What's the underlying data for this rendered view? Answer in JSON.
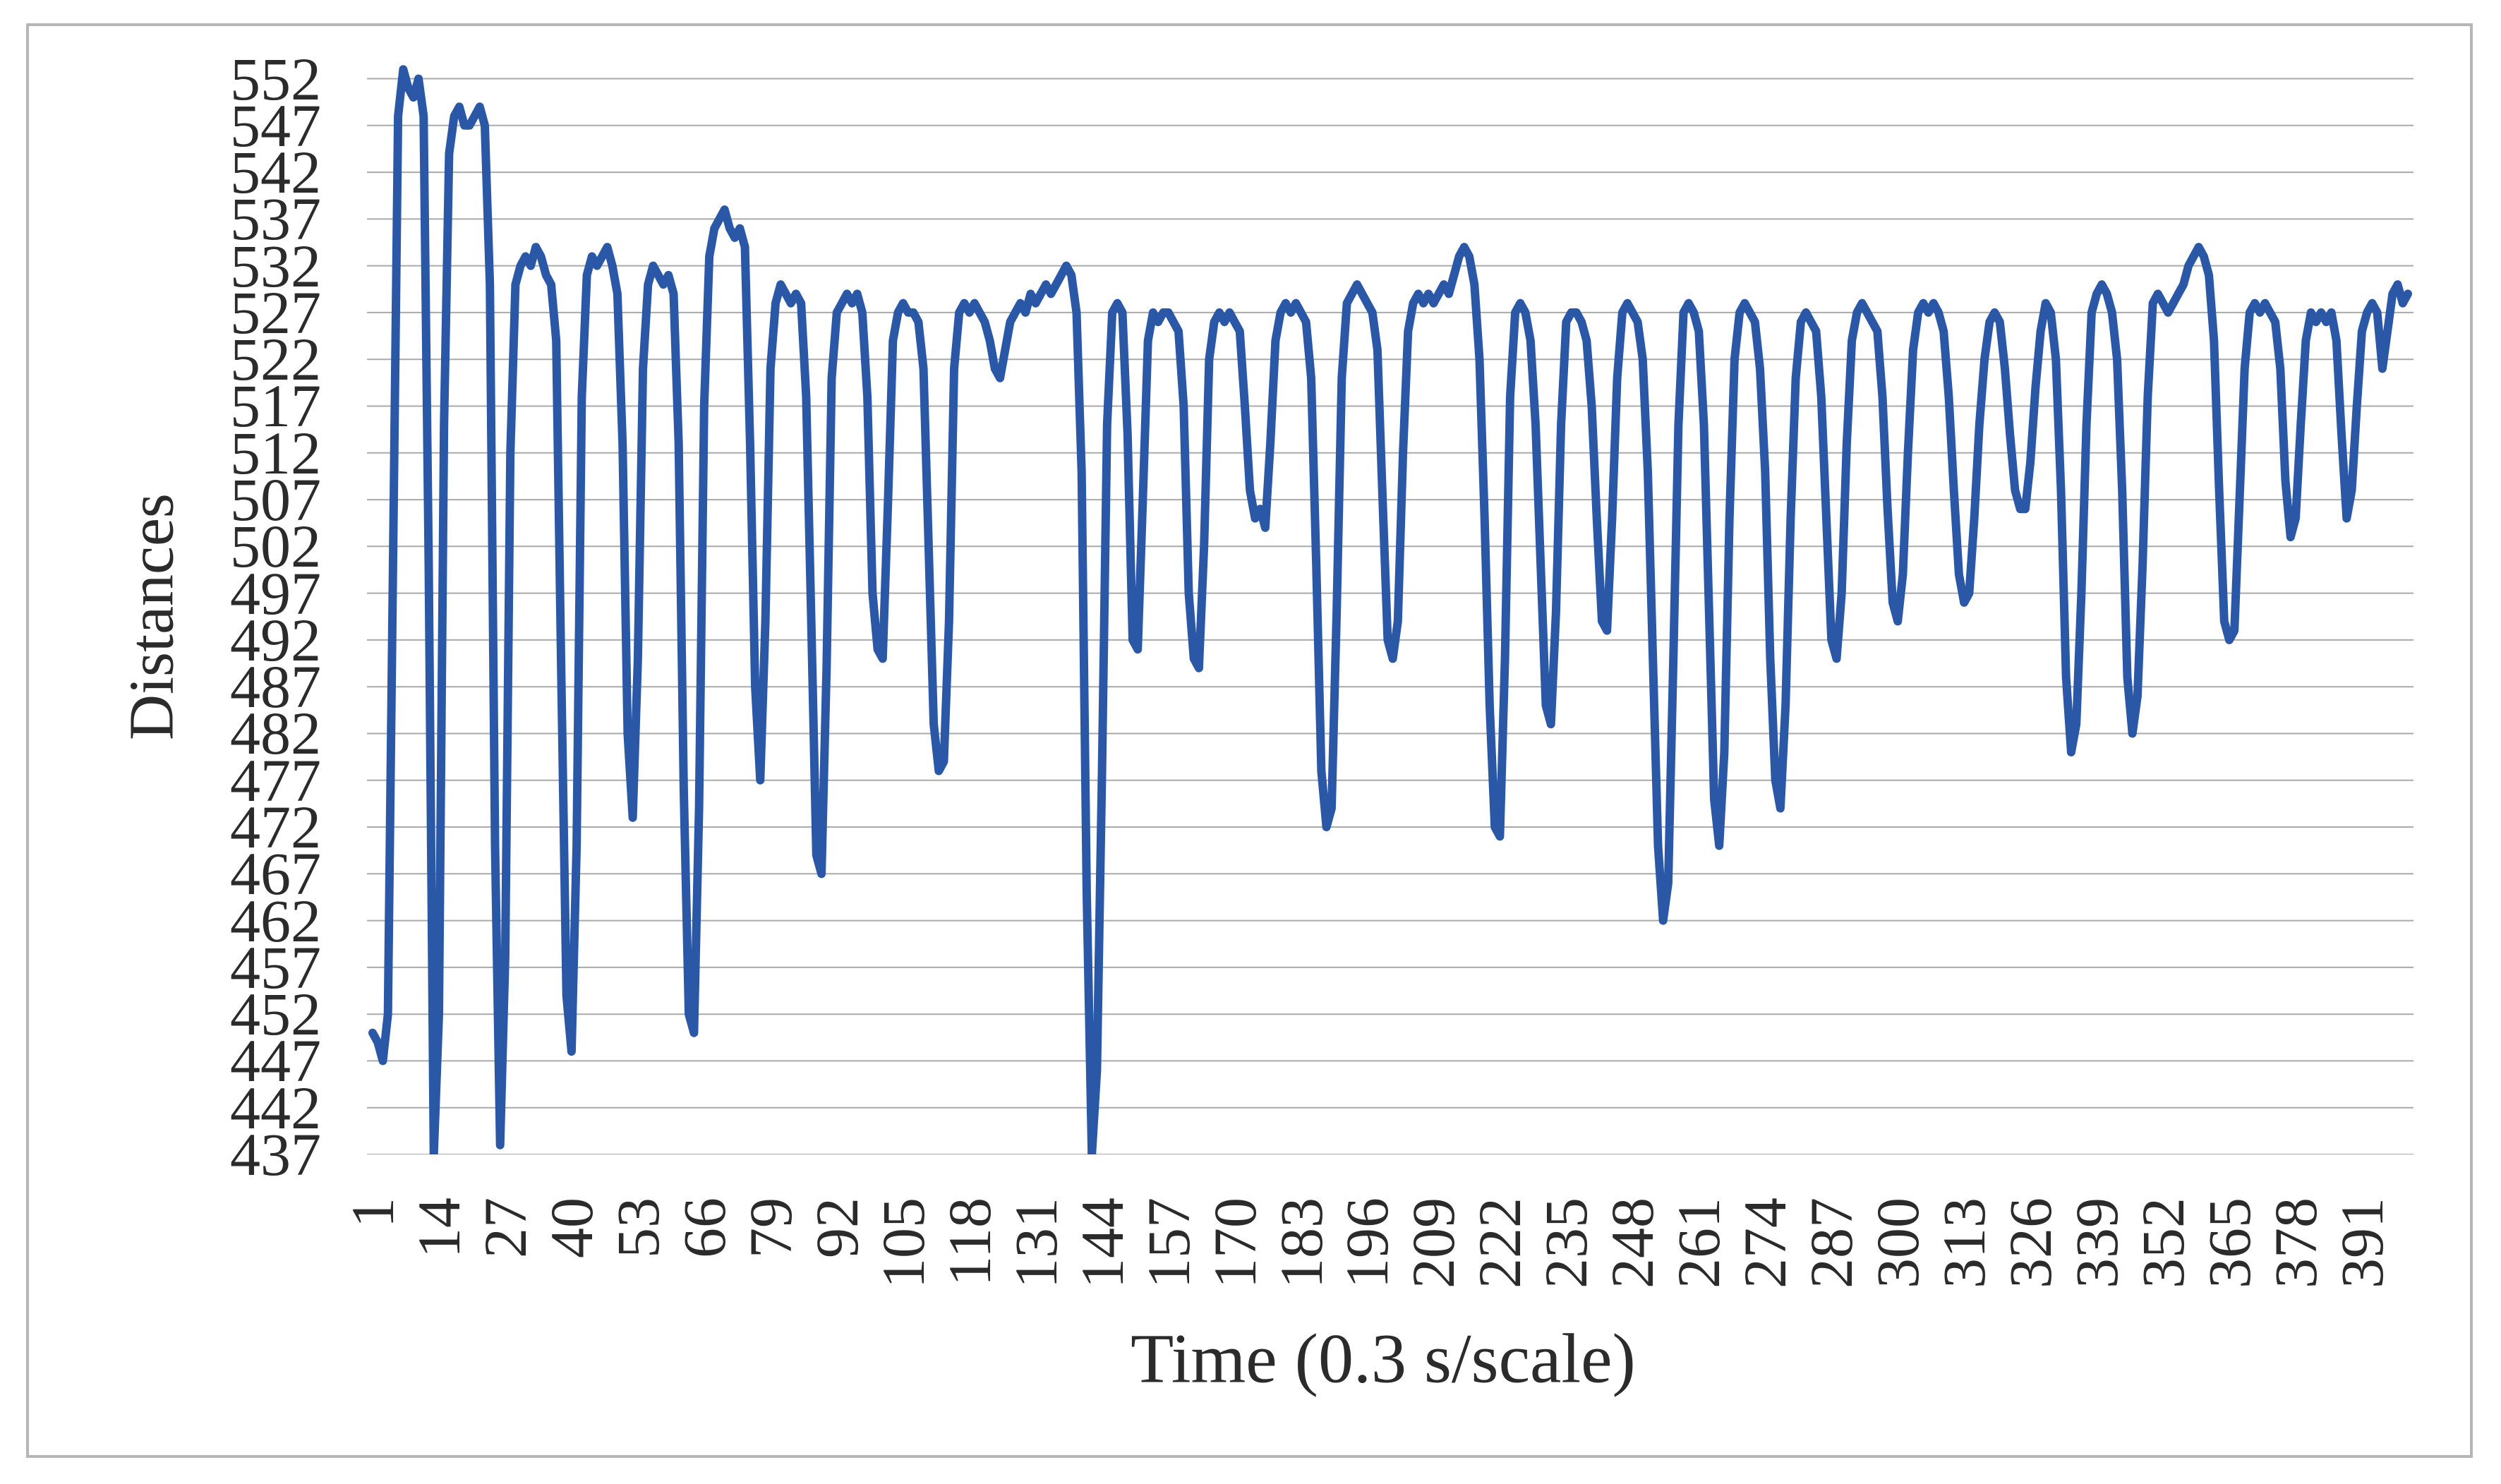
{
  "chart_data": {
    "type": "line",
    "title": "",
    "xlabel": "Time (0.3 s/scale)",
    "ylabel": "Distances",
    "legend": "none",
    "grid": "horizontal",
    "ylim": [
      437,
      554
    ],
    "y_ticks": [
      552,
      547,
      542,
      537,
      532,
      527,
      522,
      517,
      512,
      507,
      502,
      497,
      492,
      487,
      482,
      477,
      472,
      467,
      462,
      457,
      452,
      447,
      442,
      437
    ],
    "x_tick_labels": [
      "1",
      "14",
      "27",
      "40",
      "53",
      "66",
      "79",
      "92",
      "105",
      "118",
      "131",
      "144",
      "157",
      "170",
      "183",
      "196",
      "209",
      "222",
      "235",
      "248",
      "261",
      "274",
      "287",
      "300",
      "313",
      "326",
      "339",
      "352",
      "365",
      "378",
      "391"
    ],
    "x_tick_start": 1,
    "x_tick_step": 13,
    "x_count": 400,
    "colors": {
      "line": "#2b58a6",
      "gridline": "#aaaaaa",
      "frame_border": "#b6b6b6",
      "text": "#2b2b2b"
    },
    "series": [
      {
        "name": "Distances",
        "x_start": 1,
        "x_step": 1,
        "values": [
          450,
          449,
          447,
          452,
          500,
          548,
          553,
          551,
          550,
          552,
          548,
          500,
          437,
          452,
          515,
          544,
          548,
          549,
          547,
          547,
          548,
          549,
          547,
          530,
          470,
          438,
          458,
          512,
          530,
          532,
          533,
          532,
          534,
          533,
          531,
          530,
          524,
          488,
          454,
          448,
          470,
          518,
          531,
          533,
          532,
          533,
          534,
          532,
          529,
          513,
          482,
          473,
          490,
          521,
          530,
          532,
          531,
          530,
          531,
          529,
          513,
          476,
          452,
          450,
          474,
          517,
          533,
          536,
          537,
          538,
          536,
          535,
          536,
          534,
          513,
          487,
          477,
          494,
          521,
          528,
          530,
          529,
          528,
          529,
          528,
          518,
          494,
          469,
          467,
          489,
          520,
          527,
          528,
          529,
          528,
          529,
          527,
          518,
          497,
          491,
          490,
          506,
          524,
          527,
          528,
          527,
          527,
          526,
          521,
          502,
          483,
          478,
          479,
          494,
          521,
          527,
          528,
          527,
          528,
          527,
          526,
          524,
          521,
          520,
          523,
          526,
          527,
          528,
          527,
          529,
          528,
          529,
          530,
          529,
          530,
          531,
          532,
          531,
          527,
          510,
          465,
          437,
          446,
          478,
          515,
          527,
          528,
          527,
          514,
          492,
          491,
          507,
          524,
          527,
          526,
          527,
          527,
          526,
          525,
          517,
          497,
          490,
          489,
          502,
          522,
          526,
          527,
          526,
          527,
          526,
          525,
          517,
          508,
          505,
          506,
          504,
          513,
          524,
          527,
          528,
          527,
          528,
          527,
          526,
          520,
          500,
          478,
          472,
          474,
          495,
          520,
          528,
          529,
          530,
          529,
          528,
          527,
          523,
          507,
          492,
          490,
          494,
          512,
          525,
          528,
          529,
          528,
          529,
          528,
          529,
          530,
          529,
          531,
          533,
          534,
          533,
          530,
          522,
          505,
          485,
          472,
          471,
          490,
          518,
          527,
          528,
          527,
          524,
          515,
          500,
          485,
          483,
          495,
          515,
          526,
          527,
          527,
          526,
          524,
          517,
          505,
          494,
          493,
          505,
          520,
          527,
          528,
          527,
          526,
          522,
          510,
          490,
          470,
          462,
          466,
          490,
          515,
          527,
          528,
          527,
          525,
          515,
          495,
          475,
          470,
          480,
          505,
          522,
          527,
          528,
          527,
          526,
          521,
          510,
          490,
          477,
          474,
          485,
          505,
          520,
          526,
          527,
          526,
          525,
          518,
          505,
          492,
          490,
          497,
          513,
          524,
          527,
          528,
          527,
          526,
          525,
          518,
          506,
          496,
          494,
          499,
          512,
          523,
          527,
          528,
          527,
          528,
          527,
          525,
          518,
          508,
          499,
          496,
          497,
          505,
          515,
          522,
          526,
          527,
          526,
          521,
          514,
          508,
          506,
          506,
          511,
          519,
          525,
          528,
          527,
          522,
          508,
          488,
          480,
          483,
          497,
          515,
          527,
          529,
          530,
          529,
          527,
          522,
          508,
          488,
          482,
          486,
          500,
          518,
          528,
          529,
          528,
          527,
          528,
          529,
          530,
          532,
          533,
          534,
          533,
          531,
          524,
          508,
          494,
          492,
          493,
          507,
          521,
          527,
          528,
          527,
          528,
          527,
          526,
          521,
          509,
          503,
          505,
          515,
          524,
          527,
          526,
          527,
          526,
          527,
          524,
          514,
          505,
          508,
          517,
          525,
          527,
          528,
          527,
          521,
          525,
          529,
          530,
          528,
          529
        ]
      }
    ]
  }
}
